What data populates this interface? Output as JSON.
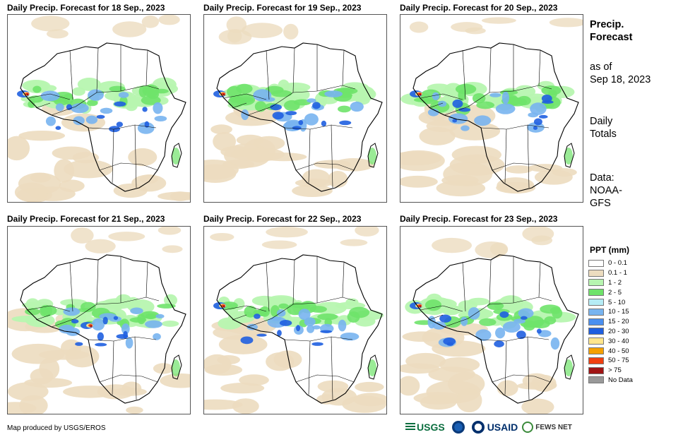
{
  "panels": [
    {
      "title": "Daily Precip. Forecast for 18  Sep., 2023"
    },
    {
      "title": "Daily Precip. Forecast for 19  Sep., 2023"
    },
    {
      "title": "Daily Precip. Forecast for 20  Sep., 2023"
    },
    {
      "title": "Daily Precip. Forecast for 21  Sep., 2023"
    },
    {
      "title": "Daily Precip. Forecast for 22  Sep., 2023"
    },
    {
      "title": "Daily Precip. Forecast for 23  Sep., 2023"
    }
  ],
  "side": {
    "title_line1": "Precip.",
    "title_line2": "Forecast",
    "asof_line1": "as of",
    "asof_line2": "Sep 18, 2023",
    "daily_line1": "Daily",
    "daily_line2": "Totals",
    "data_line1": "Data:",
    "data_line2": "NOAA-",
    "data_line3": "GFS"
  },
  "legend": {
    "title": "PPT (mm)",
    "items": [
      {
        "label": "0 - 0.1",
        "color": "#ffffff"
      },
      {
        "label": "0.1 - 1",
        "color": "#ecdcbf"
      },
      {
        "label": "1 - 2",
        "color": "#b7f5b0"
      },
      {
        "label": "2 - 5",
        "color": "#6fe36a"
      },
      {
        "label": "5 - 10",
        "color": "#b5ecf5"
      },
      {
        "label": "10 - 15",
        "color": "#78b4f0"
      },
      {
        "label": "15 - 20",
        "color": "#4a8ff0"
      },
      {
        "label": "20 - 30",
        "color": "#1f5fe0"
      },
      {
        "label": "30 - 40",
        "color": "#ffe68c"
      },
      {
        "label": "40 - 50",
        "color": "#f5a000"
      },
      {
        "label": "50 - 75",
        "color": "#f04010"
      },
      {
        "label": "> 75",
        "color": "#a01414"
      },
      {
        "label": "No Data",
        "color": "#999999"
      }
    ]
  },
  "credit": "Map produced by USGS/EROS",
  "logos": {
    "usgs": "USGS",
    "usaid": "USAID",
    "fews": "FEWS NET"
  }
}
